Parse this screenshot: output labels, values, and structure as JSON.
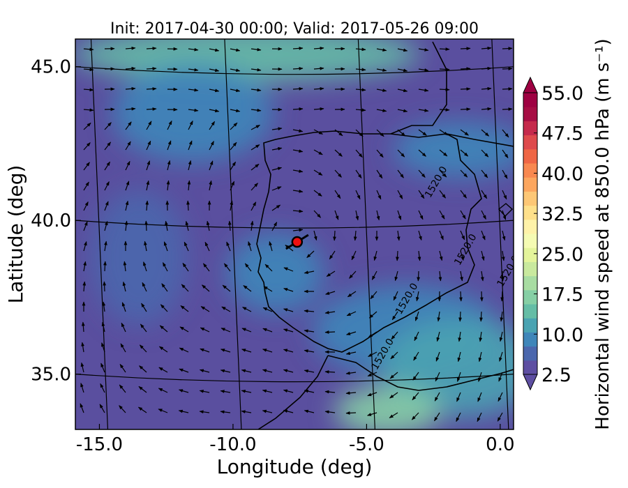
{
  "chart_data": {
    "type": "heatmap",
    "title": "Init: 2017-04-30 00:00; Valid: 2017-05-26 09:00",
    "xlabel": "Longitude (deg)",
    "ylabel": "Latitude (deg)",
    "x_ticks": [
      "-15.0",
      "-10.0",
      "-5.0",
      "0.0"
    ],
    "x_tick_values": [
      -15,
      -10,
      -5,
      0
    ],
    "y_ticks": [
      "35.0",
      "40.0",
      "45.0"
    ],
    "y_tick_values": [
      35,
      40,
      45
    ],
    "xlim": [
      -15.9,
      0.5
    ],
    "ylim": [
      33.2,
      45.9
    ],
    "colorbar": {
      "label": "Horizontal wind speed at 850.0 hPa (m s⁻¹)",
      "ticks": [
        "2.5",
        "10.0",
        "17.5",
        "25.0",
        "32.5",
        "40.0",
        "47.5",
        "55.0"
      ],
      "tick_values": [
        2.5,
        10.0,
        17.5,
        25.0,
        32.5,
        40.0,
        47.5,
        55.0
      ],
      "range": [
        2.5,
        55.0
      ],
      "extend": "both",
      "colors": [
        "#5e4fa2",
        "#4b67ad",
        "#3f86b9",
        "#4aa3b2",
        "#65bda6",
        "#86cfa5",
        "#a8dca2",
        "#c9e99e",
        "#e4f49b",
        "#f5fbb3",
        "#fef2a9",
        "#fee08b",
        "#fdc776",
        "#fca65f",
        "#f88850",
        "#ef6645",
        "#de4a4c",
        "#c52a4c",
        "#a60e44",
        "#9e0142"
      ]
    },
    "point_marker": {
      "lon": -7.6,
      "lat": 39.3,
      "color": "#ee1111"
    },
    "contour_labels": [
      {
        "text": "1520.0",
        "lon": -2.3,
        "lat": 41.2
      },
      {
        "text": "1520.0",
        "lon": -1.2,
        "lat": 39.0
      },
      {
        "text": "1520.0",
        "lon": -3.4,
        "lat": 37.4
      },
      {
        "text": "1520.0",
        "lon": -4.3,
        "lat": 35.6
      },
      {
        "text": "1520.0",
        "lon": 0.4,
        "lat": 38.3
      }
    ],
    "wind_regions": [
      {
        "lon": -9.5,
        "lat": 45.4,
        "rlon": 6.5,
        "rlat": 0.9,
        "speed": 13
      },
      {
        "lon": -11.5,
        "lat": 43.5,
        "rlon": 3.0,
        "rlat": 1.6,
        "speed": 8
      },
      {
        "lon": -8.4,
        "lat": 38.3,
        "rlon": 1.8,
        "rlat": 1.3,
        "speed": 10
      },
      {
        "lon": -3.5,
        "lat": 36.4,
        "rlon": 3.5,
        "rlat": 1.5,
        "speed": 8
      },
      {
        "lon": -1.5,
        "lat": 35.2,
        "rlon": 3.0,
        "rlat": 1.6,
        "speed": 12
      },
      {
        "lon": -4.2,
        "lat": 33.8,
        "rlon": 2.0,
        "rlat": 0.8,
        "speed": 16
      },
      {
        "lon": -1.5,
        "lat": 42.3,
        "rlon": 2.5,
        "rlat": 0.9,
        "speed": 9
      },
      {
        "lon": -13.5,
        "lat": 38.8,
        "rlon": 1.8,
        "rlat": 2.2,
        "speed": 6
      }
    ]
  }
}
